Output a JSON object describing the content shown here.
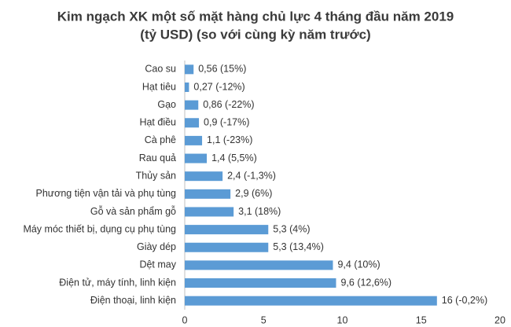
{
  "chart_data": {
    "type": "hbar",
    "title": [
      "Kim ngạch XK một số mặt hàng chủ lực 4 tháng đầu năm 2019",
      "(tỷ USD) (so với cùng kỳ năm trước)"
    ],
    "categories": [
      "Cao su",
      "Hạt tiêu",
      "Gạo",
      "Hạt điều",
      "Cà phê",
      "Rau quả",
      "Thủy sản",
      "Phương tiện vận tải và phụ tùng",
      "Gỗ và sản phẩm gỗ",
      "Máy móc thiết bị, dụng cụ phụ tùng",
      "Giày dép",
      "Dệt may",
      "Điện tử, máy tính, linh kiện",
      "Điện thoại, linh kiện"
    ],
    "values": [
      0.56,
      0.27,
      0.86,
      0.9,
      1.1,
      1.4,
      2.4,
      2.9,
      3.1,
      5.3,
      5.3,
      9.4,
      9.6,
      16
    ],
    "value_labels": [
      "0,56 (15%)",
      "0,27 (-12%)",
      "0,86 (-22%)",
      "0,9 (-17%)",
      "1,1 (-23%)",
      "1,4 (5,5%)",
      "2,4 (-1,3%)",
      "2,9 (6%)",
      "3,1 (18%)",
      "5,3 (4%)",
      "5,3 (13,4%)",
      "9,4 (10%)",
      "9,6 (12,6%)",
      "16 (-0,2%)"
    ],
    "color": "#5b9bd5",
    "xlim": [
      0,
      20
    ],
    "xticks": [
      0,
      5,
      10,
      15,
      20
    ],
    "grid": false
  }
}
